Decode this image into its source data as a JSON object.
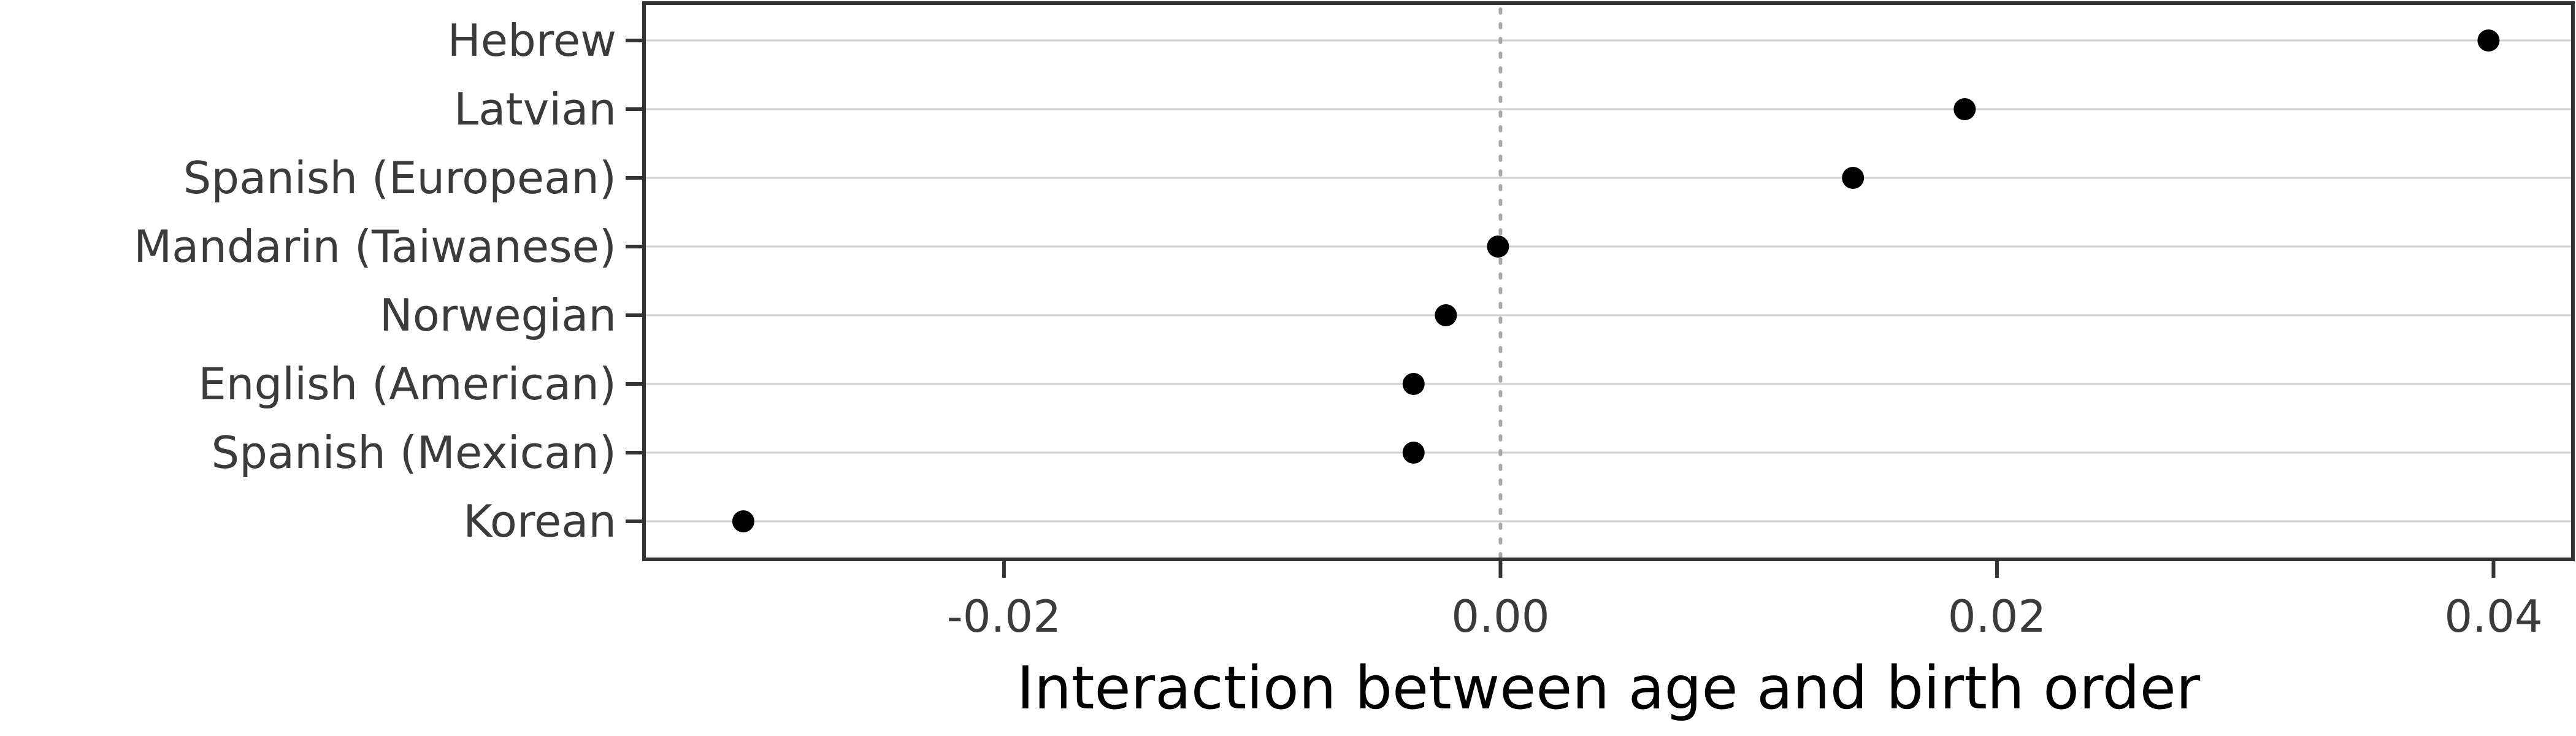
{
  "chart_data": {
    "type": "scatter",
    "categories": [
      "Hebrew",
      "Latvian",
      "Spanish (European)",
      "Mandarin (Taiwanese)",
      "Norwegian",
      "English (American)",
      "Spanish (Mexican)",
      "Korean"
    ],
    "values": [
      0.0398,
      0.0187,
      0.0142,
      -0.0001,
      -0.0022,
      -0.0035,
      -0.0035,
      -0.0305
    ],
    "xlabel": "Interaction between age and birth order",
    "ylabel": "",
    "xlim": [
      -0.0345,
      0.0432
    ],
    "xticks": [
      -0.02,
      0.0,
      0.02,
      0.04
    ],
    "xtick_labels": [
      "-0.02",
      "0.00",
      "0.02",
      "0.04"
    ],
    "reference_line": 0,
    "grid": "horizontal",
    "legend": "none"
  }
}
